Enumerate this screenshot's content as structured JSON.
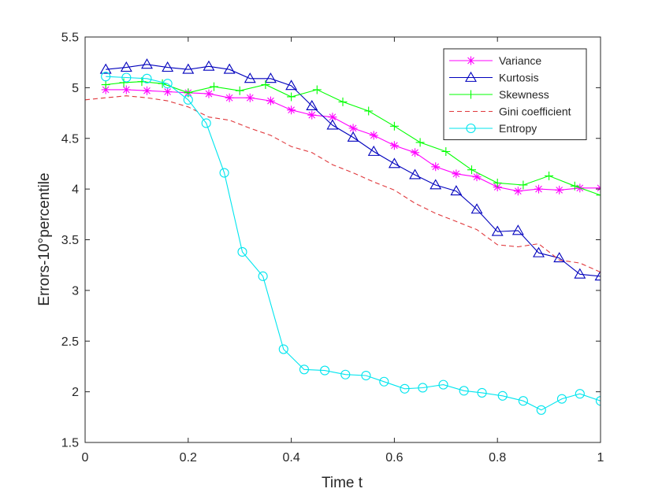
{
  "chart_data": {
    "type": "line",
    "title": "",
    "xlabel": "Time t",
    "ylabel": "Errors-10°percentile",
    "xlim": [
      0,
      1
    ],
    "ylim": [
      1.5,
      5.5
    ],
    "xticks": [
      0,
      0.2,
      0.4,
      0.6,
      0.8,
      1
    ],
    "xtick_labels": [
      "0",
      "0.2",
      "0.4",
      "0.6",
      "0.8",
      "1"
    ],
    "yticks": [
      1.5,
      2,
      2.5,
      3,
      3.5,
      4,
      4.5,
      5,
      5.5
    ],
    "ytick_labels": [
      "1.5",
      "2",
      "2.5",
      "3",
      "3.5",
      "4",
      "4.5",
      "5",
      "5.5"
    ],
    "grid": false,
    "legend_position": "top-right",
    "series": [
      {
        "name": "Variance",
        "color": "#ff00ff",
        "marker": "asterisk",
        "line": "solid",
        "x": [
          0.04,
          0.08,
          0.12,
          0.16,
          0.2,
          0.24,
          0.28,
          0.32,
          0.36,
          0.4,
          0.44,
          0.48,
          0.52,
          0.56,
          0.6,
          0.64,
          0.68,
          0.72,
          0.76,
          0.8,
          0.84,
          0.88,
          0.92,
          0.96,
          1.0
        ],
        "values": [
          4.98,
          4.98,
          4.97,
          4.96,
          4.95,
          4.94,
          4.9,
          4.9,
          4.87,
          4.78,
          4.73,
          4.71,
          4.6,
          4.53,
          4.43,
          4.36,
          4.22,
          4.15,
          4.12,
          4.02,
          3.98,
          4.0,
          3.99,
          4.01,
          4.01
        ]
      },
      {
        "name": "Kurtosis",
        "color": "#0000bd",
        "marker": "triangle",
        "line": "solid",
        "x": [
          0.04,
          0.08,
          0.12,
          0.16,
          0.2,
          0.24,
          0.28,
          0.32,
          0.36,
          0.4,
          0.44,
          0.48,
          0.52,
          0.56,
          0.6,
          0.64,
          0.68,
          0.72,
          0.76,
          0.8,
          0.84,
          0.88,
          0.92,
          0.96,
          1.0
        ],
        "values": [
          5.18,
          5.2,
          5.23,
          5.2,
          5.18,
          5.21,
          5.18,
          5.09,
          5.09,
          5.02,
          4.82,
          4.63,
          4.51,
          4.37,
          4.25,
          4.14,
          4.04,
          3.98,
          3.8,
          3.58,
          3.59,
          3.37,
          3.32,
          3.16,
          3.14
        ]
      },
      {
        "name": "Skewness",
        "color": "#00ff00",
        "marker": "plus",
        "line": "solid",
        "x": [
          0.04,
          0.075,
          0.11,
          0.15,
          0.2,
          0.25,
          0.3,
          0.35,
          0.4,
          0.45,
          0.5,
          0.55,
          0.6,
          0.65,
          0.7,
          0.75,
          0.8,
          0.85,
          0.9,
          0.95,
          1.0
        ],
        "values": [
          5.03,
          5.05,
          5.06,
          5.04,
          4.95,
          5.01,
          4.97,
          5.03,
          4.91,
          4.98,
          4.86,
          4.77,
          4.62,
          4.46,
          4.37,
          4.19,
          4.06,
          4.04,
          4.13,
          4.03,
          3.94
        ]
      },
      {
        "name": "Gini coefficient",
        "color": "#e0383c",
        "marker": "none",
        "line": "dashed",
        "x": [
          0.0,
          0.04,
          0.08,
          0.12,
          0.16,
          0.2,
          0.24,
          0.28,
          0.32,
          0.36,
          0.4,
          0.44,
          0.48,
          0.52,
          0.56,
          0.6,
          0.64,
          0.68,
          0.72,
          0.76,
          0.8,
          0.84,
          0.88,
          0.92,
          0.96,
          1.0
        ],
        "values": [
          4.88,
          4.9,
          4.92,
          4.9,
          4.87,
          4.81,
          4.71,
          4.68,
          4.6,
          4.53,
          4.42,
          4.36,
          4.24,
          4.16,
          4.07,
          3.99,
          3.86,
          3.76,
          3.68,
          3.6,
          3.45,
          3.43,
          3.46,
          3.3,
          3.27,
          3.18
        ]
      },
      {
        "name": "Entropy",
        "color": "#00e5ee",
        "marker": "circle",
        "line": "solid",
        "x": [
          0.04,
          0.08,
          0.12,
          0.16,
          0.2,
          0.235,
          0.27,
          0.305,
          0.345,
          0.385,
          0.425,
          0.465,
          0.505,
          0.545,
          0.58,
          0.62,
          0.655,
          0.695,
          0.735,
          0.77,
          0.81,
          0.85,
          0.885,
          0.925,
          0.96,
          1.0
        ],
        "values": [
          5.11,
          5.1,
          5.09,
          5.04,
          4.88,
          4.65,
          4.16,
          3.38,
          3.14,
          2.42,
          2.22,
          2.21,
          2.17,
          2.16,
          2.1,
          2.03,
          2.04,
          2.07,
          2.01,
          1.99,
          1.96,
          1.91,
          1.82,
          1.93,
          1.98,
          1.91
        ]
      }
    ]
  }
}
